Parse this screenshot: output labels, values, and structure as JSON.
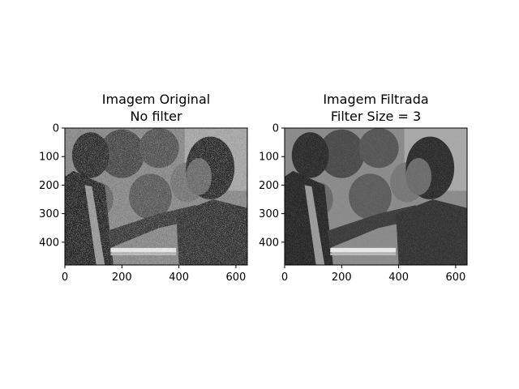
{
  "chart_data": [
    {
      "type": "image",
      "title_line1": "Imagem Original",
      "title_line2": "No filter",
      "xlim": [
        0,
        640
      ],
      "ylim": [
        480,
        0
      ],
      "xticks": [
        0,
        200,
        400,
        600
      ],
      "yticks": [
        0,
        100,
        200,
        300,
        400
      ],
      "content": "grayscale photo of a couple with balloons, heavy salt-and-pepper noise",
      "noise": "heavy"
    },
    {
      "type": "image",
      "title_line1": "Imagem Filtrada",
      "title_line2": "Filter Size = 3",
      "xlim": [
        0,
        640
      ],
      "ylim": [
        480,
        0
      ],
      "xticks": [
        0,
        200,
        400,
        600
      ],
      "yticks": [
        0,
        100,
        200,
        300,
        400
      ],
      "content": "same photo after median filter, much less noise",
      "noise": "light"
    }
  ]
}
